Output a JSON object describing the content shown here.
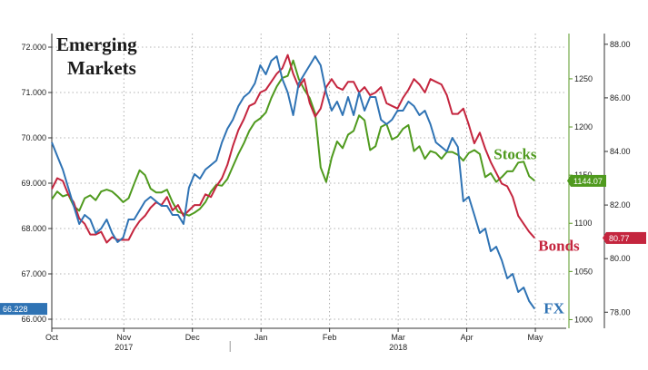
{
  "chart_data": {
    "type": "line",
    "title": "Emerging Markets",
    "x_labels": [
      "Oct",
      "Nov",
      "Dec",
      "Jan",
      "Feb",
      "Mar",
      "Apr",
      "May"
    ],
    "x_year_labels": [
      "2017",
      "2018"
    ],
    "x_domain": [
      0,
      7.5
    ],
    "x_ticks": [
      0,
      1.05,
      2.05,
      3.05,
      4.05,
      5.05,
      6.05,
      7.05
    ],
    "x_year_positions": [
      1.05,
      5.05
    ],
    "x_divider": 2.6,
    "grid": true,
    "axes": {
      "left": {
        "ylim": [
          65.8,
          72.3
        ],
        "ticks": [
          66.0,
          67.0,
          68.0,
          69.0,
          70.0,
          71.0,
          72.0
        ],
        "tick_labels": [
          "66.000",
          "67.000",
          "68.000",
          "69.000",
          "70.000",
          "71.000",
          "72.000"
        ]
      },
      "mid": {
        "ylim": [
          991,
          1297
        ],
        "ticks": [
          1000,
          1050,
          1100,
          1150,
          1200,
          1250
        ],
        "tick_labels": [
          "1000",
          "1050",
          "1100",
          "1150",
          "1200",
          "1250"
        ]
      },
      "right": {
        "ylim": [
          77.4,
          88.4
        ],
        "ticks": [
          78,
          80,
          82,
          84,
          86,
          88
        ],
        "tick_labels": [
          "78.00",
          "80.00",
          "82.00",
          "84.00",
          "86.00",
          "88.00"
        ]
      }
    },
    "series": [
      {
        "name": "Stocks",
        "axis": "mid",
        "color": "#4f9a1e",
        "last_label": "1144.07",
        "x": [
          0,
          0.08,
          0.16,
          0.24,
          0.32,
          0.4,
          0.48,
          0.56,
          0.64,
          0.72,
          0.8,
          0.88,
          0.96,
          1.04,
          1.12,
          1.2,
          1.28,
          1.36,
          1.44,
          1.52,
          1.6,
          1.68,
          1.76,
          1.84,
          1.92,
          2.0,
          2.08,
          2.16,
          2.24,
          2.32,
          2.4,
          2.48,
          2.56,
          2.64,
          2.72,
          2.8,
          2.88,
          2.96,
          3.04,
          3.12,
          3.2,
          3.28,
          3.36,
          3.44,
          3.52,
          3.6,
          3.68,
          3.76,
          3.84,
          3.92,
          4.0,
          4.08,
          4.16,
          4.24,
          4.32,
          4.4,
          4.48,
          4.56,
          4.64,
          4.72,
          4.8,
          4.88,
          4.96,
          5.04,
          5.12,
          5.2,
          5.28,
          5.36,
          5.44,
          5.52,
          5.6,
          5.68,
          5.76,
          5.84,
          5.92,
          6.0,
          6.08,
          6.16,
          6.24,
          6.32,
          6.4,
          6.48,
          6.56,
          6.64,
          6.72,
          6.8,
          6.88,
          6.96,
          7.04
        ],
        "values": [
          1125,
          1133,
          1128,
          1130,
          1118,
          1113,
          1126,
          1129,
          1124,
          1133,
          1135,
          1133,
          1128,
          1122,
          1126,
          1141,
          1155,
          1150,
          1136,
          1132,
          1132,
          1135,
          1122,
          1112,
          1110,
          1108,
          1111,
          1115,
          1122,
          1133,
          1140,
          1139,
          1146,
          1159,
          1172,
          1183,
          1196,
          1205,
          1209,
          1215,
          1230,
          1242,
          1251,
          1253,
          1269,
          1250,
          1239,
          1230,
          1214,
          1158,
          1143,
          1168,
          1185,
          1178,
          1192,
          1196,
          1212,
          1207,
          1176,
          1180,
          1200,
          1203,
          1187,
          1190,
          1198,
          1202,
          1175,
          1180,
          1167,
          1175,
          1173,
          1167,
          1174,
          1174,
          1171,
          1165,
          1173,
          1176,
          1172,
          1148,
          1152,
          1143,
          1148,
          1154,
          1154,
          1163,
          1164,
          1149,
          1144.07
        ]
      },
      {
        "name": "Bonds",
        "axis": "right",
        "color": "#c4253e",
        "last_label": "80.77",
        "x": [
          0,
          0.08,
          0.16,
          0.24,
          0.32,
          0.4,
          0.48,
          0.56,
          0.64,
          0.72,
          0.8,
          0.88,
          0.96,
          1.04,
          1.12,
          1.2,
          1.28,
          1.36,
          1.44,
          1.52,
          1.6,
          1.68,
          1.76,
          1.84,
          1.92,
          2.0,
          2.08,
          2.16,
          2.24,
          2.32,
          2.4,
          2.48,
          2.56,
          2.64,
          2.72,
          2.8,
          2.88,
          2.96,
          3.04,
          3.12,
          3.2,
          3.28,
          3.36,
          3.44,
          3.52,
          3.6,
          3.68,
          3.76,
          3.84,
          3.92,
          4.0,
          4.08,
          4.16,
          4.24,
          4.32,
          4.4,
          4.48,
          4.56,
          4.64,
          4.72,
          4.8,
          4.88,
          4.96,
          5.04,
          5.12,
          5.2,
          5.28,
          5.36,
          5.44,
          5.52,
          5.6,
          5.68,
          5.76,
          5.84,
          5.92,
          6.0,
          6.08,
          6.16,
          6.24,
          6.32,
          6.4,
          6.48,
          6.56,
          6.64,
          6.72,
          6.8,
          6.88,
          6.96,
          7.04
        ],
        "values": [
          82.6,
          83.0,
          82.9,
          82.4,
          82.1,
          81.5,
          81.3,
          80.9,
          80.9,
          81.0,
          80.6,
          80.8,
          80.7,
          80.7,
          80.7,
          81.1,
          81.4,
          81.6,
          81.9,
          82.1,
          82.0,
          82.3,
          81.8,
          82.0,
          81.6,
          81.8,
          82.0,
          82.0,
          82.4,
          82.3,
          82.7,
          83.0,
          83.5,
          84.2,
          84.8,
          85.2,
          85.7,
          85.8,
          86.2,
          86.3,
          86.6,
          86.9,
          87.1,
          87.6,
          86.9,
          86.4,
          86.7,
          85.8,
          85.3,
          85.6,
          86.4,
          86.7,
          86.4,
          86.3,
          86.6,
          86.6,
          86.2,
          86.4,
          86.1,
          86.2,
          86.4,
          85.8,
          85.7,
          85.6,
          86.0,
          86.3,
          86.7,
          86.5,
          86.2,
          86.7,
          86.6,
          86.5,
          86.1,
          85.4,
          85.4,
          85.6,
          85.0,
          84.3,
          84.7,
          84.1,
          83.6,
          83.2,
          82.8,
          82.7,
          82.3,
          81.6,
          81.3,
          81.0,
          80.77
        ]
      },
      {
        "name": "FX",
        "axis": "left",
        "color": "#2f73b4",
        "last_label": "66.228",
        "x": [
          0,
          0.08,
          0.16,
          0.24,
          0.32,
          0.4,
          0.48,
          0.56,
          0.64,
          0.72,
          0.8,
          0.88,
          0.96,
          1.04,
          1.12,
          1.2,
          1.28,
          1.36,
          1.44,
          1.52,
          1.6,
          1.68,
          1.76,
          1.84,
          1.92,
          2.0,
          2.08,
          2.16,
          2.24,
          2.32,
          2.4,
          2.48,
          2.56,
          2.64,
          2.72,
          2.8,
          2.88,
          2.96,
          3.04,
          3.12,
          3.2,
          3.28,
          3.36,
          3.44,
          3.52,
          3.6,
          3.68,
          3.76,
          3.84,
          3.92,
          4.0,
          4.08,
          4.16,
          4.24,
          4.32,
          4.4,
          4.48,
          4.56,
          4.64,
          4.72,
          4.8,
          4.88,
          4.96,
          5.04,
          5.12,
          5.2,
          5.28,
          5.36,
          5.44,
          5.52,
          5.6,
          5.68,
          5.76,
          5.84,
          5.92,
          6.0,
          6.08,
          6.16,
          6.24,
          6.32,
          6.4,
          6.48,
          6.56,
          6.64,
          6.72,
          6.8,
          6.88,
          6.96,
          7.04
        ],
        "values": [
          69.9,
          69.6,
          69.3,
          68.9,
          68.5,
          68.1,
          68.3,
          68.2,
          67.9,
          68.0,
          68.2,
          67.9,
          67.7,
          67.8,
          68.2,
          68.2,
          68.4,
          68.6,
          68.7,
          68.6,
          68.5,
          68.5,
          68.3,
          68.3,
          68.1,
          68.9,
          69.2,
          69.1,
          69.3,
          69.4,
          69.5,
          69.9,
          70.2,
          70.4,
          70.7,
          70.9,
          71.0,
          71.2,
          71.6,
          71.4,
          71.7,
          71.8,
          71.3,
          71.0,
          70.5,
          71.2,
          71.4,
          71.6,
          71.8,
          71.6,
          71.0,
          70.6,
          70.8,
          70.5,
          70.9,
          70.5,
          71.0,
          70.6,
          70.9,
          70.9,
          70.4,
          70.3,
          70.4,
          70.6,
          70.6,
          70.8,
          70.7,
          70.5,
          70.6,
          70.3,
          69.9,
          69.8,
          69.7,
          70.0,
          69.8,
          68.6,
          68.7,
          68.3,
          67.9,
          68.0,
          67.5,
          67.6,
          67.3,
          66.9,
          67.0,
          66.6,
          66.7,
          66.4,
          66.228
        ]
      }
    ]
  }
}
